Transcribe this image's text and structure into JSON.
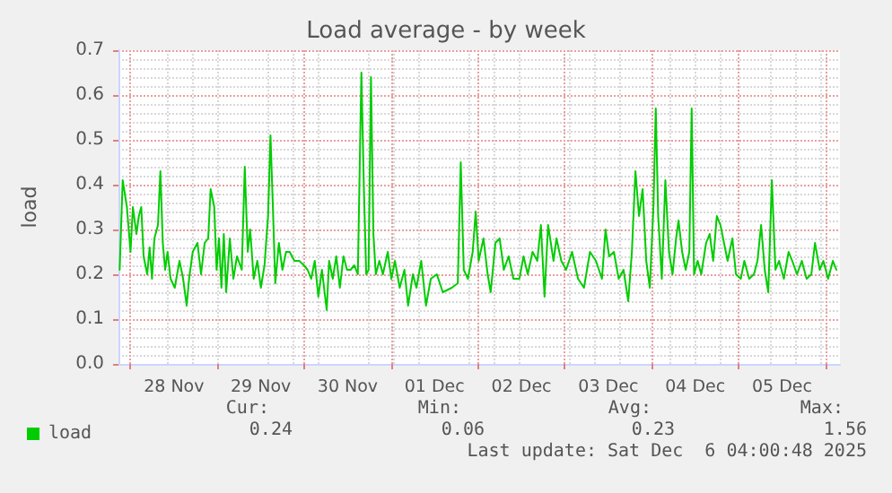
{
  "chart_data": {
    "type": "line",
    "title": "Load average - by week",
    "ylabel": "load",
    "xlim": [
      "2025-11-27T20:40",
      "2025-12-06T04:00"
    ],
    "xticks": [
      {
        "value": "2025-11-28T00:00",
        "label": null
      },
      {
        "value": "2025-11-28T12:00",
        "label": "28 Nov"
      },
      {
        "value": "2025-11-29T00:00",
        "label": null
      },
      {
        "value": "2025-11-29T12:00",
        "label": "29 Nov"
      },
      {
        "value": "2025-11-30T00:00",
        "label": null
      },
      {
        "value": "2025-11-30T12:00",
        "label": "30 Nov"
      },
      {
        "value": "2025-12-01T00:00",
        "label": null
      },
      {
        "value": "2025-12-01T12:00",
        "label": "01 Dec"
      },
      {
        "value": "2025-12-02T00:00",
        "label": null
      },
      {
        "value": "2025-12-02T12:00",
        "label": "02 Dec"
      },
      {
        "value": "2025-12-03T00:00",
        "label": null
      },
      {
        "value": "2025-12-03T12:00",
        "label": "03 Dec"
      },
      {
        "value": "2025-12-04T00:00",
        "label": null
      },
      {
        "value": "2025-12-04T12:00",
        "label": "04 Dec"
      },
      {
        "value": "2025-12-05T00:00",
        "label": null
      },
      {
        "value": "2025-12-05T12:00",
        "label": "05 Dec"
      },
      {
        "value": "2025-12-06T00:00",
        "label": null
      }
    ],
    "ylim": [
      0,
      0.7
    ],
    "yticks": [
      {
        "value": 0,
        "label": "0.0"
      },
      {
        "value": 0.1,
        "label": "0.1"
      },
      {
        "value": 0.2,
        "label": "0.2"
      },
      {
        "value": 0.3,
        "label": "0.3"
      },
      {
        "value": 0.4,
        "label": "0.4"
      },
      {
        "value": 0.5,
        "label": "0.5"
      },
      {
        "value": 0.6,
        "label": "0.6"
      },
      {
        "value": 0.7,
        "label": "0.7"
      }
    ],
    "grid": true,
    "legend": "bottom left",
    "marker": "none",
    "line_style": "solid",
    "annotations": [
      "Cur:",
      "Min:",
      "Avg:",
      "Max:",
      "0.24",
      "0.06",
      "0.23",
      "1.56",
      "Last update: Sat Dec  6 04:00:48 2025"
    ],
    "series": [
      {
        "name": "load",
        "color": "#00cc00",
        "x": [
          "2025-11-27T21:00",
          "2025-11-27T21:50",
          "2025-11-27T23:00",
          "2025-11-28T00:00",
          "2025-11-28T00:39",
          "2025-11-28T01:38",
          "2025-11-28T02:18",
          "2025-11-28T02:58",
          "2025-11-28T03:37",
          "2025-11-28T04:37",
          "2025-11-28T05:17",
          "2025-11-28T05:56",
          "2025-11-28T06:36",
          "2025-11-28T07:35",
          "2025-11-28T08:15",
          "2025-11-28T08:55",
          "2025-11-28T09:34",
          "2025-11-28T10:14",
          "2025-11-28T11:04",
          "2025-11-28T12:13",
          "2025-11-28T13:32",
          "2025-11-28T14:32",
          "2025-11-28T15:31",
          "2025-11-28T16:11",
          "2025-11-28T17:11",
          "2025-11-28T18:30",
          "2025-11-28T19:29",
          "2025-11-28T20:29",
          "2025-11-28T21:28",
          "2025-11-28T22:08",
          "2025-11-28T23:08",
          "2025-11-28T23:47",
          "2025-11-29T00:27",
          "2025-11-29T01:07",
          "2025-11-29T01:46",
          "2025-11-29T02:26",
          "2025-11-29T03:26",
          "2025-11-29T04:25",
          "2025-11-29T05:25",
          "2025-11-29T06:44",
          "2025-11-29T07:34",
          "2025-11-29T08:23",
          "2025-11-29T09:03",
          "2025-11-29T10:02",
          "2025-11-29T11:02",
          "2025-11-29T12:01",
          "2025-11-29T13:01",
          "2025-11-29T14:00",
          "2025-11-29T14:40",
          "2025-11-29T15:20",
          "2025-11-29T16:00",
          "2025-11-29T16:59",
          "2025-11-29T17:58",
          "2025-11-29T18:58",
          "2025-11-29T19:58",
          "2025-11-29T21:17",
          "2025-11-29T22:36",
          "2025-11-29T23:55",
          "2025-11-30T00:55",
          "2025-11-30T01:55",
          "2025-11-30T02:54",
          "2025-11-30T03:53",
          "2025-11-30T04:53",
          "2025-11-30T06:12",
          "2025-11-30T06:52",
          "2025-11-30T07:52",
          "2025-11-30T08:51",
          "2025-11-30T09:50",
          "2025-11-30T10:50",
          "2025-11-30T11:49",
          "2025-11-30T12:49",
          "2025-11-30T13:49",
          "2025-11-30T14:48",
          "2025-11-30T15:47",
          "2025-11-30T16:27",
          "2025-11-30T17:07",
          "2025-11-30T17:46",
          "2025-11-30T18:26",
          "2025-11-30T19:06",
          "2025-11-30T19:46",
          "2025-11-30T20:45",
          "2025-11-30T21:44",
          "2025-11-30T23:04",
          "2025-12-01T00:04",
          "2025-12-01T01:03",
          "2025-12-01T02:22",
          "2025-12-01T03:41",
          "2025-12-01T04:41",
          "2025-12-01T06:01",
          "2025-12-01T07:00",
          "2025-12-01T08:19",
          "2025-12-01T09:38",
          "2025-12-01T10:58",
          "2025-12-01T12:37",
          "2025-12-01T14:17",
          "2025-12-01T16:46",
          "2025-12-01T18:25",
          "2025-12-01T19:14",
          "2025-12-01T20:04",
          "2025-12-01T21:13",
          "2025-12-01T22:32",
          "2025-12-01T23:22",
          "2025-12-02T00:11",
          "2025-12-02T01:31",
          "2025-12-02T02:40",
          "2025-12-02T03:30",
          "2025-12-02T04:49",
          "2025-12-02T05:59",
          "2025-12-02T07:08",
          "2025-12-02T08:28",
          "2025-12-02T09:47",
          "2025-12-02T11:26",
          "2025-12-02T12:35",
          "2025-12-02T13:45",
          "2025-12-02T15:04",
          "2025-12-02T16:23",
          "2025-12-02T17:23",
          "2025-12-02T18:23",
          "2025-12-02T19:22",
          "2025-12-02T20:52",
          "2025-12-02T21:41",
          "2025-12-02T23:01",
          "2025-12-03T00:20",
          "2025-12-03T01:59",
          "2025-12-03T03:38",
          "2025-12-03T05:17",
          "2025-12-03T06:56",
          "2025-12-03T08:35",
          "2025-12-03T10:15",
          "2025-12-03T11:14",
          "2025-12-03T12:14",
          "2025-12-03T13:33",
          "2025-12-03T14:52",
          "2025-12-03T16:12",
          "2025-12-03T17:31",
          "2025-12-03T18:31",
          "2025-12-03T19:30",
          "2025-12-03T20:29",
          "2025-12-03T21:29",
          "2025-12-03T22:29",
          "2025-12-03T23:28",
          "2025-12-04T00:28",
          "2025-12-04T01:07",
          "2025-12-04T01:47",
          "2025-12-04T02:47",
          "2025-12-04T03:46",
          "2025-12-04T04:46",
          "2025-12-04T05:45",
          "2025-12-04T06:44",
          "2025-12-04T07:24",
          "2025-12-04T08:24",
          "2025-12-04T09:23",
          "2025-12-04T10:23",
          "2025-12-04T11:02",
          "2025-12-04T11:42",
          "2025-12-04T12:41",
          "2025-12-04T13:41",
          "2025-12-04T15:01",
          "2025-12-04T16:00",
          "2025-12-04T16:59",
          "2025-12-04T17:59",
          "2025-12-04T18:59",
          "2025-12-04T19:58",
          "2025-12-04T20:58",
          "2025-12-04T22:17",
          "2025-12-04T23:16",
          "2025-12-05T00:36",
          "2025-12-05T01:35",
          "2025-12-05T02:55",
          "2025-12-05T04:14",
          "2025-12-05T05:13",
          "2025-12-05T06:13",
          "2025-12-05T07:13",
          "2025-12-05T08:12",
          "2025-12-05T09:11",
          "2025-12-05T10:11",
          "2025-12-05T11:11",
          "2025-12-05T12:30",
          "2025-12-05T13:49",
          "2025-12-05T14:49",
          "2025-12-05T16:08",
          "2025-12-05T17:28",
          "2025-12-05T18:47",
          "2025-12-05T20:06",
          "2025-12-05T21:06",
          "2025-12-05T22:25",
          "2025-12-05T23:25",
          "2025-12-06T00:44",
          "2025-12-06T02:03",
          "2025-12-06T03:02"
        ],
        "values": [
          0.21,
          0.41,
          0.35,
          0.25,
          0.35,
          0.29,
          0.33,
          0.35,
          0.24,
          0.2,
          0.26,
          0.19,
          0.28,
          0.31,
          0.43,
          0.27,
          0.21,
          0.25,
          0.19,
          0.17,
          0.23,
          0.19,
          0.13,
          0.19,
          0.25,
          0.27,
          0.2,
          0.27,
          0.28,
          0.39,
          0.35,
          0.21,
          0.28,
          0.17,
          0.29,
          0.16,
          0.28,
          0.19,
          0.24,
          0.21,
          0.44,
          0.25,
          0.3,
          0.19,
          0.23,
          0.17,
          0.22,
          0.33,
          0.51,
          0.35,
          0.18,
          0.27,
          0.21,
          0.25,
          0.25,
          0.23,
          0.23,
          0.22,
          0.21,
          0.19,
          0.23,
          0.15,
          0.21,
          0.12,
          0.23,
          0.19,
          0.24,
          0.17,
          0.24,
          0.21,
          0.21,
          0.22,
          0.2,
          0.65,
          0.4,
          0.2,
          0.21,
          0.64,
          0.29,
          0.2,
          0.23,
          0.2,
          0.25,
          0.19,
          0.23,
          0.17,
          0.21,
          0.13,
          0.2,
          0.17,
          0.23,
          0.13,
          0.19,
          0.2,
          0.16,
          0.17,
          0.18,
          0.45,
          0.21,
          0.19,
          0.25,
          0.34,
          0.23,
          0.28,
          0.2,
          0.16,
          0.27,
          0.28,
          0.21,
          0.24,
          0.19,
          0.19,
          0.24,
          0.2,
          0.25,
          0.23,
          0.31,
          0.15,
          0.31,
          0.23,
          0.28,
          0.23,
          0.21,
          0.25,
          0.19,
          0.17,
          0.25,
          0.23,
          0.19,
          0.3,
          0.24,
          0.25,
          0.19,
          0.21,
          0.14,
          0.25,
          0.43,
          0.33,
          0.39,
          0.23,
          0.17,
          0.35,
          0.57,
          0.33,
          0.19,
          0.41,
          0.25,
          0.2,
          0.28,
          0.32,
          0.25,
          0.21,
          0.25,
          0.57,
          0.2,
          0.23,
          0.2,
          0.27,
          0.29,
          0.23,
          0.33,
          0.31,
          0.27,
          0.23,
          0.28,
          0.2,
          0.19,
          0.23,
          0.19,
          0.2,
          0.23,
          0.31,
          0.21,
          0.16,
          0.41,
          0.21,
          0.23,
          0.19,
          0.25,
          0.23,
          0.2,
          0.23,
          0.19,
          0.2,
          0.27,
          0.21,
          0.23,
          0.19,
          0.23,
          0.21
        ]
      }
    ]
  }
}
